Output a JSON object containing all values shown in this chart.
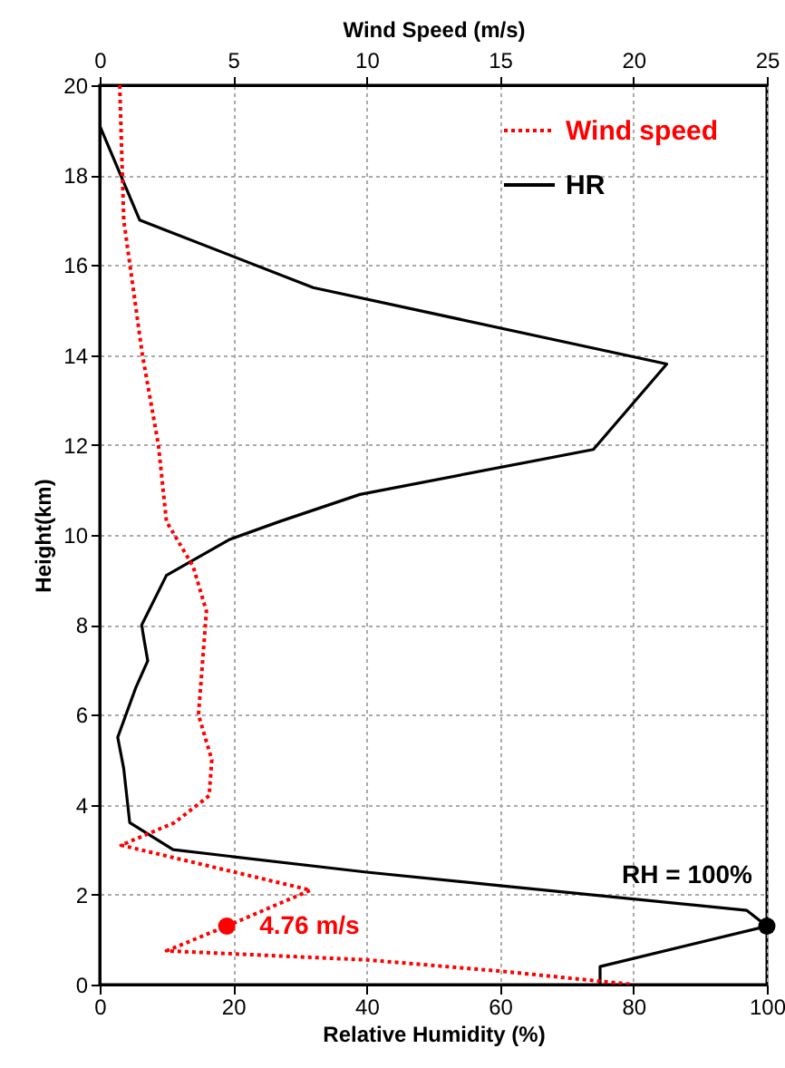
{
  "chart_data": {
    "type": "line",
    "xlabel": "Relative Humidity (%)",
    "x2label": "Wind Speed (m/s)",
    "ylabel": "Height(km)",
    "xlim": [
      0,
      100
    ],
    "xticks": [
      0,
      20,
      40,
      60,
      80,
      100
    ],
    "x2lim": [
      0,
      25
    ],
    "x2ticks": [
      0,
      5,
      10,
      15,
      20,
      25
    ],
    "ylim": [
      0,
      20
    ],
    "yticks": [
      0,
      2,
      4,
      6,
      8,
      10,
      12,
      14,
      16,
      18,
      20
    ],
    "grid": true,
    "legend": "top right",
    "series": [
      {
        "name": "Wind speed",
        "axis": "x2",
        "color": "#ff0000",
        "line_style": "dotted",
        "x": [
          0.75,
          0.9,
          1.6,
          2.2,
          2.5,
          2.8,
          3.5,
          4.0,
          3.7,
          4.2,
          4.1,
          2.8,
          0.8,
          7.9,
          4.76,
          2.5,
          10,
          15,
          20
        ],
        "values": [
          20,
          17,
          14,
          12,
          10.3,
          10,
          9.3,
          8.3,
          6,
          5,
          4.2,
          3.6,
          3.1,
          2.1,
          1.3,
          0.75,
          0.55,
          0.3,
          0
        ]
      },
      {
        "name": "HR",
        "color": "#000000",
        "line_style": "solid",
        "x": [
          0,
          0,
          6,
          32,
          85,
          74,
          39,
          27,
          19.5,
          10,
          6.3,
          6.5,
          7.2,
          5.4,
          2.7,
          3.6,
          4.5,
          11,
          40,
          60,
          97,
          100,
          75,
          75
        ],
        "values": [
          20,
          19.1,
          17,
          15.5,
          13.8,
          11.9,
          10.9,
          10.3,
          9.9,
          9.1,
          8,
          7.8,
          7.2,
          6.6,
          5.5,
          4.8,
          3.6,
          3,
          2.5,
          2.2,
          1.65,
          1.3,
          0.4,
          0
        ]
      },
      {
        "type": "scatter",
        "color": "#000000",
        "marker": "circle",
        "x": [
          100
        ],
        "values": [
          1.3
        ]
      },
      {
        "type": "scatter",
        "axis": "x2",
        "color": "#ff0000",
        "marker": "circle",
        "x": [
          4.76
        ],
        "values": [
          1.3
        ]
      }
    ],
    "annotations": [
      "RH = 100%",
      "4.76 m/s"
    ]
  }
}
